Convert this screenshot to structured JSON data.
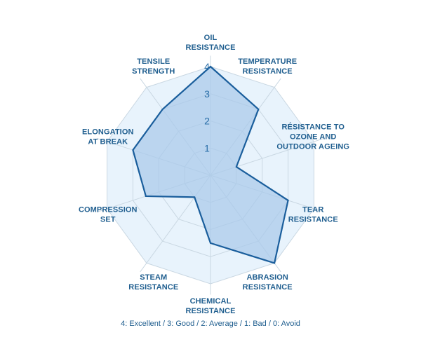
{
  "chart_data": {
    "type": "radar",
    "title": "",
    "axes": [
      [
        "OIL",
        "RESISTANCE"
      ],
      [
        "TEMPERATURE",
        "RESISTANCE"
      ],
      [
        "RÉSISTANCE TO",
        "OZONE AND",
        "OUTDOOR AGEING"
      ],
      [
        "TEAR",
        "RESISTANCE"
      ],
      [
        "ABRASION",
        "RESISTANCE"
      ],
      [
        "CHEMICAL",
        "RESISTANCE"
      ],
      [
        "STEAM",
        "RESISTANCE"
      ],
      [
        "COMPRESSION",
        "SET"
      ],
      [
        "ELONGATION",
        "AT BREAK"
      ],
      [
        "TENSILE",
        "STRENGTH"
      ]
    ],
    "values": [
      4,
      3,
      1,
      3,
      4,
      2.5,
      1,
      2.5,
      3,
      3
    ],
    "r_range": [
      0,
      4
    ],
    "ticks": [
      1,
      2,
      3,
      4
    ],
    "grid": true,
    "colors": {
      "fill": "#a9c9ea",
      "stroke": "#1a5e9c",
      "grid_fill": "#e8f3fc",
      "grid_line": "#c9d7e2",
      "text": "#1f5e8f"
    },
    "legend_note": "4: Excellent / 3: Good / 2: Average / 1: Bad / 0: Avoid"
  }
}
